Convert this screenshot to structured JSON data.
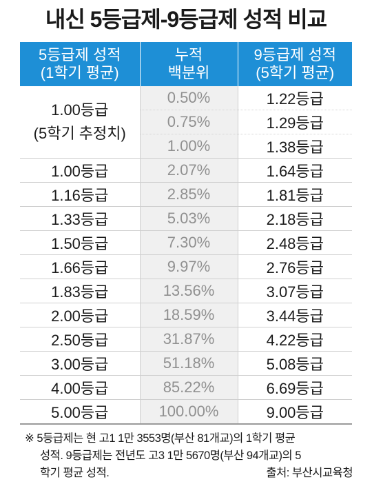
{
  "title": "내신 5등급제-9등급제 성적 비교",
  "headers": {
    "col1": [
      "5등급제 성적",
      "(1학기 평균)"
    ],
    "col2": [
      "누적",
      "백분위"
    ],
    "col3": [
      "9등급제 성적",
      "(5학기 평균)"
    ]
  },
  "group": {
    "grade_lines": [
      "1.00등급",
      "(5학기 추정치)"
    ],
    "rows": [
      {
        "percentile": "0.50%",
        "grade9": "1.22등급"
      },
      {
        "percentile": "0.75%",
        "grade9": "1.29등급"
      },
      {
        "percentile": "1.00%",
        "grade9": "1.38등급"
      }
    ]
  },
  "rows": [
    {
      "grade5": "1.00등급",
      "percentile": "2.07%",
      "grade9": "1.64등급"
    },
    {
      "grade5": "1.16등급",
      "percentile": "2.85%",
      "grade9": "1.81등급"
    },
    {
      "grade5": "1.33등급",
      "percentile": "5.03%",
      "grade9": "2.18등급"
    },
    {
      "grade5": "1.50등급",
      "percentile": "7.30%",
      "grade9": "2.48등급"
    },
    {
      "grade5": "1.66등급",
      "percentile": "9.97%",
      "grade9": "2.76등급"
    },
    {
      "grade5": "1.83등급",
      "percentile": "13.56%",
      "grade9": "3.07등급"
    },
    {
      "grade5": "2.00등급",
      "percentile": "18.59%",
      "grade9": "3.44등급"
    },
    {
      "grade5": "2.50등급",
      "percentile": "31.87%",
      "grade9": "4.22등급"
    },
    {
      "grade5": "3.00등급",
      "percentile": "51.18%",
      "grade9": "5.08등급"
    },
    {
      "grade5": "4.00등급",
      "percentile": "85.22%",
      "grade9": "6.69등급"
    },
    {
      "grade5": "5.00등급",
      "percentile": "100.00%",
      "grade9": "9.00등급"
    }
  ],
  "note": {
    "lines": [
      "※ 5등급제는 현 고1 1만 3553명(부산 81개교)의 1학기 평균",
      "성적. 9등급제는 전년도 고3 1만 5670명(부산 94개교)의 5",
      "학기 평균 성적."
    ],
    "source": "출처: 부산시교육청"
  },
  "colors": {
    "header_bg": "#1e8fd6",
    "header_text": "#ffffff",
    "percentile_bg": "#f0f0f0",
    "percentile_text": "#909090"
  }
}
